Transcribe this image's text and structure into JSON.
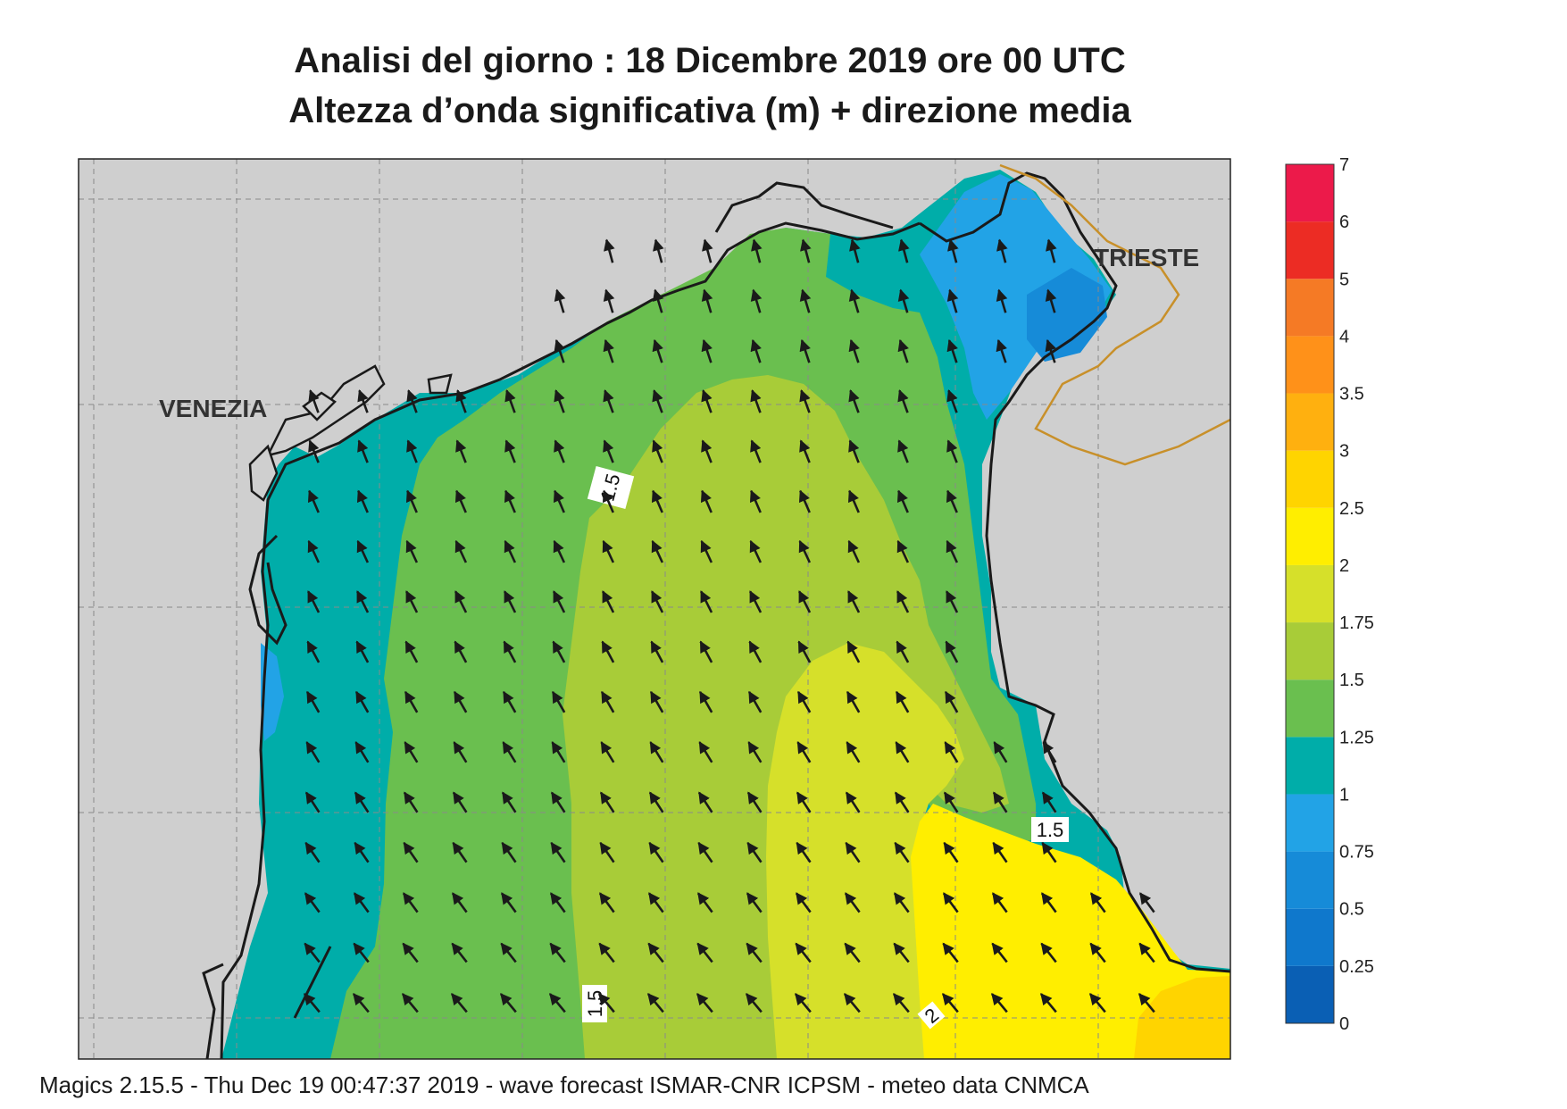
{
  "header": {
    "title_line1": "Analisi del giorno :  18 Dicembre  2019   ore 00 UTC",
    "title_line2": "Altezza d’onda significativa (m) + direzione media"
  },
  "map": {
    "labels": {
      "venezia": "VENEZIA",
      "trieste": "TRIESTE"
    },
    "contour_labels": [
      "1.5",
      "1.5",
      "1.5",
      "2"
    ],
    "colors": {
      "land": "#cfcfcf",
      "coast": "#1a1a1a",
      "border": "#c8902a",
      "grid": "#8a8a8a"
    }
  },
  "legend": {
    "bins": [
      {
        "label": "0",
        "color": "#0a5fb4"
      },
      {
        "label": "0.25",
        "color": "#0f78cc"
      },
      {
        "label": "0.5",
        "color": "#168bd8"
      },
      {
        "label": "0.75",
        "color": "#22a3e6"
      },
      {
        "label": "1",
        "color": "#00ada9"
      },
      {
        "label": "1.25",
        "color": "#6abf4f"
      },
      {
        "label": "1.5",
        "color": "#a8cc38"
      },
      {
        "label": "1.75",
        "color": "#d6e02a"
      },
      {
        "label": "2",
        "color": "#ffee00"
      },
      {
        "label": "2.5",
        "color": "#ffd400"
      },
      {
        "label": "3",
        "color": "#ffb00f"
      },
      {
        "label": "3.5",
        "color": "#ff9119"
      },
      {
        "label": "4",
        "color": "#f57a25"
      },
      {
        "label": "5",
        "color": "#ec2c24"
      },
      {
        "label": "6",
        "color": "#ec1a4a"
      }
    ],
    "top_label": "7"
  },
  "footer": {
    "text": "Magics 2.15.5 - Thu Dec 19 00:47:37 2019 - wave forecast  ISMAR-CNR  ICPSM - meteo data   CNMCA"
  }
}
